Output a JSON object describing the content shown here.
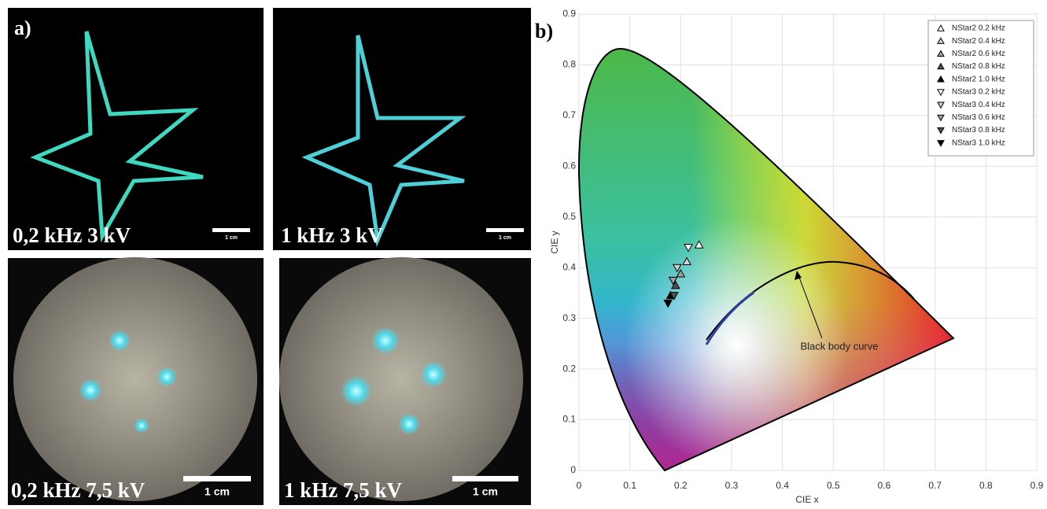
{
  "figure": {
    "panel_a": "a)",
    "panel_b": "b)",
    "photos": [
      {
        "caption": "0,2 kHz 3 kV",
        "scale": "1 cm"
      },
      {
        "caption": "1 kHz 3 kV",
        "scale": "1 cm"
      },
      {
        "caption": "0,2 kHz 7,5 kV",
        "scale": "1 cm"
      },
      {
        "caption": "1 kHz 7,5 kV",
        "scale": "1 cm"
      }
    ]
  },
  "chart_data": {
    "type": "scatter",
    "x_label": "CIE x",
    "y_label": "CIE y",
    "annotation": "Black body curve",
    "grid": true,
    "xlim": [
      0,
      0.9
    ],
    "ylim": [
      0,
      0.9
    ],
    "xticks": [
      0,
      0.1,
      0.2,
      0.3,
      0.4,
      0.5,
      0.6,
      0.7,
      0.8,
      0.9
    ],
    "yticks": [
      0,
      0.1,
      0.2,
      0.3,
      0.4,
      0.5,
      0.6,
      0.7,
      0.8,
      0.9
    ],
    "legend": "upper right",
    "series": [
      {
        "name": "NStar2 0.2 kHz",
        "marker": "triangle-up",
        "color": "#ffffff",
        "x": [
          0.236
        ],
        "values": [
          0.445
        ]
      },
      {
        "name": "NStar2 0.4 kHz",
        "marker": "triangle-up",
        "color": "#d0d0d0",
        "x": [
          0.212
        ],
        "values": [
          0.412
        ]
      },
      {
        "name": "NStar2 0.6 kHz",
        "marker": "triangle-up",
        "color": "#a0a0a0",
        "x": [
          0.2
        ],
        "values": [
          0.388
        ]
      },
      {
        "name": "NStar2 0.8 kHz",
        "marker": "triangle-up",
        "color": "#505050",
        "x": [
          0.19
        ],
        "values": [
          0.365
        ]
      },
      {
        "name": "NStar2 1.0 kHz",
        "marker": "triangle-up",
        "color": "#000000",
        "x": [
          0.18
        ],
        "values": [
          0.345
        ]
      },
      {
        "name": "NStar3 0.2 kHz",
        "marker": "triangle-down",
        "color": "#ffffff",
        "x": [
          0.215
        ],
        "values": [
          0.44
        ]
      },
      {
        "name": "NStar3 0.4 kHz",
        "marker": "triangle-down",
        "color": "#d0d0d0",
        "x": [
          0.193
        ],
        "values": [
          0.4
        ]
      },
      {
        "name": "NStar3 0.6 kHz",
        "marker": "triangle-down",
        "color": "#a0a0a0",
        "x": [
          0.185
        ],
        "values": [
          0.375
        ]
      },
      {
        "name": "NStar3 0.8 kHz",
        "marker": "triangle-down",
        "color": "#505050",
        "x": [
          0.187
        ],
        "values": [
          0.345
        ]
      },
      {
        "name": "NStar3 1.0 kHz",
        "marker": "triangle-down",
        "color": "#000000",
        "x": [
          0.175
        ],
        "values": [
          0.33
        ]
      }
    ]
  }
}
